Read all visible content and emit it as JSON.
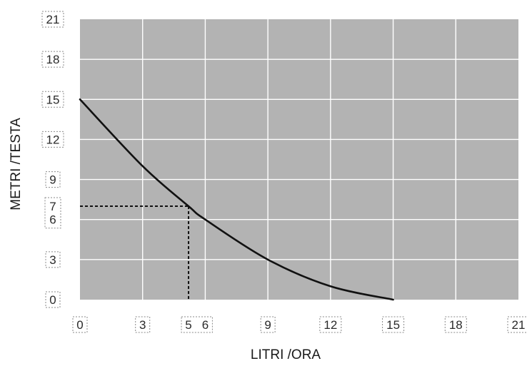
{
  "chart_data": {
    "type": "line",
    "xlabel": "LITRI /ORA",
    "ylabel": "METRI /TESTA",
    "xlim": [
      0,
      21
    ],
    "ylim": [
      0,
      21
    ],
    "x_ticks": [
      "0",
      "3",
      "5",
      "6",
      "9",
      "12",
      "15",
      "18",
      "21"
    ],
    "y_ticks": [
      "0",
      "3",
      "6",
      "7",
      "9",
      "12",
      "15",
      "18",
      "21"
    ],
    "grid": true,
    "series": [
      {
        "x": [
          0,
          3,
          5.2,
          6,
          9,
          12,
          15
        ],
        "y": [
          15,
          10,
          7,
          6,
          3,
          1,
          0
        ]
      }
    ],
    "annotations": [
      {
        "type": "dashed-guide",
        "x": 5.2,
        "y": 7,
        "x_label": "5",
        "y_label": "7"
      }
    ],
    "colors": {
      "plot_background": "#b3b3b3",
      "grid": "#ffffff",
      "curve": "#111111",
      "guide": "#111111"
    }
  }
}
